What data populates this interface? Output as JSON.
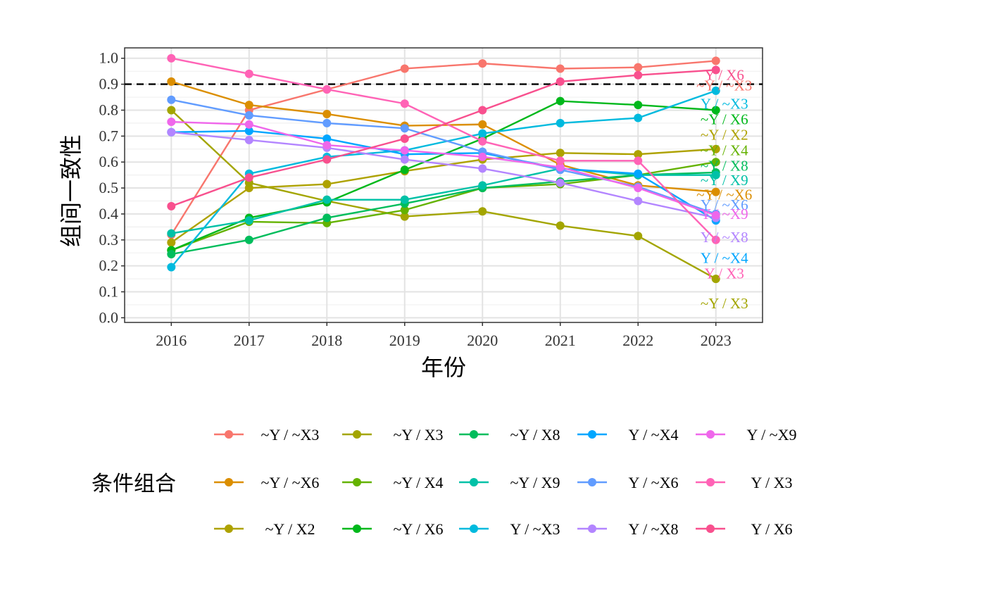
{
  "chart_data": {
    "type": "line",
    "xlabel": "年份",
    "ylabel": "组间一致性",
    "legend_title": "条件组合",
    "legend_position": "bottom",
    "x": [
      2016,
      2017,
      2018,
      2019,
      2020,
      2021,
      2022,
      2023
    ],
    "xticks": [
      "2016",
      "2017",
      "2018",
      "2019",
      "2020",
      "2021",
      "2022",
      "2023"
    ],
    "ylim": [
      0,
      1
    ],
    "yticks": [
      "0.0",
      "0.1",
      "0.2",
      "0.3",
      "0.4",
      "0.5",
      "0.6",
      "0.7",
      "0.8",
      "0.9",
      "1.0"
    ],
    "reference_line": {
      "y": 0.9,
      "style": "dashed",
      "color": "#000000"
    },
    "grid": true,
    "series": [
      {
        "name": "~Y / ~X3",
        "color": "#F8766D",
        "values": [
          0.32,
          0.8,
          0.88,
          0.96,
          0.98,
          0.96,
          0.965,
          0.99
        ]
      },
      {
        "name": "~Y / ~X6",
        "color": "#DB8E00",
        "values": [
          0.91,
          0.82,
          0.785,
          0.74,
          0.745,
          0.59,
          0.51,
          0.485
        ]
      },
      {
        "name": "~Y / X2",
        "color": "#AEA200",
        "values": [
          0.29,
          0.5,
          0.515,
          0.565,
          0.61,
          0.635,
          0.63,
          0.65
        ]
      },
      {
        "name": "~Y / X3",
        "color": "#A3A500",
        "values": [
          0.8,
          0.52,
          0.45,
          0.39,
          0.41,
          0.355,
          0.315,
          0.15
        ]
      },
      {
        "name": "~Y / X4",
        "color": "#64B200",
        "values": [
          0.26,
          0.37,
          0.365,
          0.415,
          0.5,
          0.515,
          0.55,
          0.6
        ]
      },
      {
        "name": "~Y / X6",
        "color": "#00B81B",
        "values": [
          0.26,
          0.385,
          0.445,
          0.57,
          0.69,
          0.835,
          0.82,
          0.8
        ]
      },
      {
        "name": "~Y / X8",
        "color": "#00BD5C",
        "values": [
          0.245,
          0.3,
          0.385,
          0.44,
          0.5,
          0.525,
          0.55,
          0.56
        ]
      },
      {
        "name": "~Y / X9",
        "color": "#00C1A7",
        "values": [
          0.325,
          0.375,
          0.455,
          0.455,
          0.51,
          0.575,
          0.55,
          0.55
        ]
      },
      {
        "name": "Y / ~X3",
        "color": "#00BADE",
        "values": [
          0.195,
          0.555,
          0.62,
          0.645,
          0.71,
          0.75,
          0.77,
          0.875
        ]
      },
      {
        "name": "Y / ~X4",
        "color": "#00A6FF",
        "values": [
          0.715,
          0.72,
          0.69,
          0.63,
          0.635,
          0.575,
          0.555,
          0.375
        ]
      },
      {
        "name": "Y / ~X6",
        "color": "#619CFF",
        "values": [
          0.84,
          0.78,
          0.75,
          0.73,
          0.64,
          0.57,
          0.505,
          0.4
        ]
      },
      {
        "name": "Y / ~X8",
        "color": "#B385FF",
        "values": [
          0.715,
          0.685,
          0.655,
          0.61,
          0.575,
          0.52,
          0.45,
          0.385
        ]
      },
      {
        "name": "Y / ~X9",
        "color": "#EF67EB",
        "values": [
          0.755,
          0.745,
          0.665,
          0.645,
          0.62,
          0.58,
          0.5,
          0.395
        ]
      },
      {
        "name": "Y / X3",
        "color": "#FF63B6",
        "values": [
          1.0,
          0.94,
          0.88,
          0.825,
          0.68,
          0.605,
          0.605,
          0.3
        ]
      },
      {
        "name": "Y / X6",
        "color": "#F8508E",
        "values": [
          0.43,
          0.54,
          0.61,
          0.69,
          0.8,
          0.91,
          0.935,
          0.955
        ]
      }
    ],
    "end_labels": [
      {
        "text": "Y / X6",
        "series": 14,
        "y": 0.935
      },
      {
        "text": "~Y / ~X3",
        "series": 0,
        "y": 0.895
      },
      {
        "text": "Y / ~X3",
        "series": 8,
        "y": 0.825
      },
      {
        "text": "~Y / X6",
        "series": 5,
        "y": 0.765
      },
      {
        "text": "~Y / X2",
        "series": 2,
        "y": 0.705
      },
      {
        "text": "~Y / X4",
        "series": 4,
        "y": 0.645
      },
      {
        "text": "~Y / X8",
        "series": 6,
        "y": 0.585
      },
      {
        "text": "~Y / X9",
        "series": 7,
        "y": 0.53
      },
      {
        "text": "Y / ~X6",
        "series": 10,
        "y": 0.435
      },
      {
        "text": "Y / ~X9",
        "series": 12,
        "y": 0.4
      },
      {
        "text": "~Y / ~X6",
        "series": 1,
        "y": 0.475
      },
      {
        "text": "Y / ~X8",
        "series": 11,
        "y": 0.31
      },
      {
        "text": "Y / ~X4",
        "series": 9,
        "y": 0.23
      },
      {
        "text": "Y / X3",
        "series": 13,
        "y": 0.17
      },
      {
        "text": "~Y / X3",
        "series": 3,
        "y": 0.055
      }
    ]
  }
}
